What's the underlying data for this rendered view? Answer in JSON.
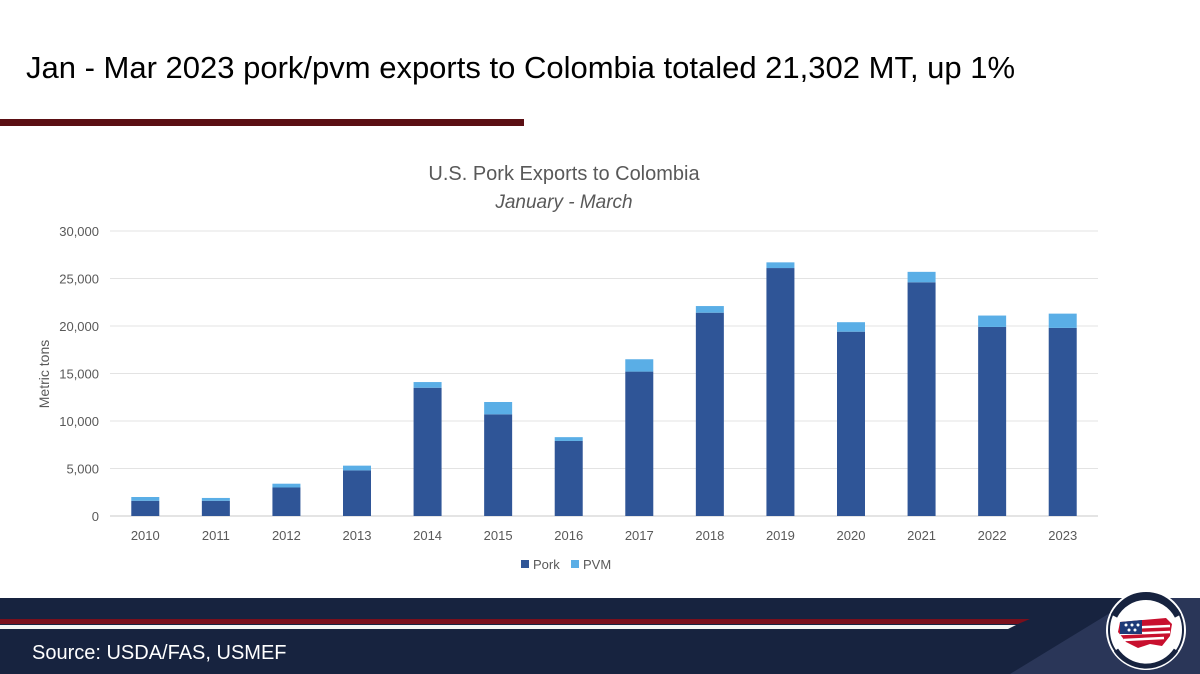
{
  "slide": {
    "headline": "Jan - Mar 2023 pork/pvm exports to Colombia totaled 21,302 MT, up 1%",
    "source": "Source: USDA/FAS, USMEF",
    "logo_text": "U.S. MEAT EXPORT FEDERATION"
  },
  "colors": {
    "pork": "#2f5597",
    "pvm": "#5aaee6",
    "title_rule": "#5b0f14",
    "footer_navy": "#17233f",
    "footer_red": "#7a0f1c"
  },
  "chart_data": {
    "type": "bar",
    "stacked": true,
    "title": "U.S. Pork Exports to Colombia",
    "subtitle": "January - March",
    "ylabel": "Metric tons",
    "xlabel": "",
    "ylim": [
      0,
      30000
    ],
    "yticks": [
      0,
      5000,
      10000,
      15000,
      20000,
      25000,
      30000
    ],
    "ytick_labels": [
      "0",
      "5,000",
      "10,000",
      "15,000",
      "20,000",
      "25,000",
      "30,000"
    ],
    "categories": [
      "2010",
      "2011",
      "2012",
      "2013",
      "2014",
      "2015",
      "2016",
      "2017",
      "2018",
      "2019",
      "2020",
      "2021",
      "2022",
      "2023"
    ],
    "series": [
      {
        "name": "Pork",
        "values": [
          1600,
          1600,
          3000,
          4800,
          13500,
          10700,
          7900,
          15200,
          21400,
          26100,
          19400,
          24600,
          19900,
          19800
        ]
      },
      {
        "name": "PVM",
        "values": [
          400,
          300,
          400,
          500,
          600,
          1300,
          400,
          1300,
          700,
          600,
          1000,
          1100,
          1200,
          1502
        ]
      }
    ],
    "grid": true,
    "legend": "bottom-center"
  }
}
